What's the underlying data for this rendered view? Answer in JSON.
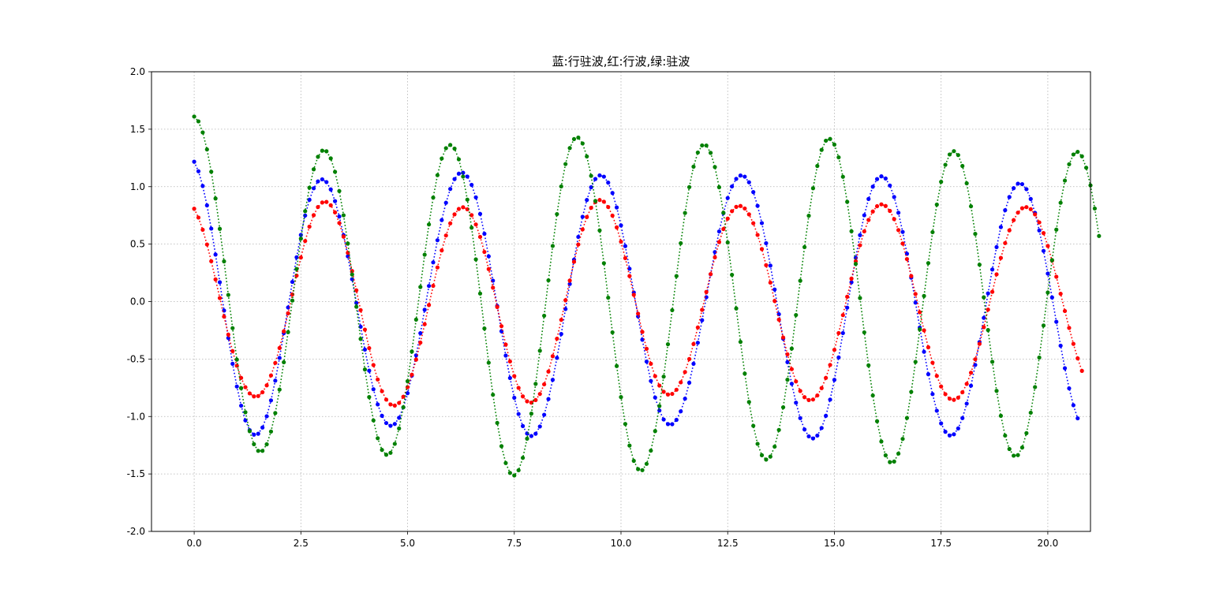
{
  "chart_data": {
    "type": "line",
    "title": "蓝:行驻波,红:行波,绿:驻波",
    "xlabel": "",
    "ylabel": "",
    "xlim": [
      -1.0,
      21.0
    ],
    "ylim": [
      -2.0,
      2.0
    ],
    "x_ticks": [
      0.0,
      2.5,
      5.0,
      7.5,
      10.0,
      12.5,
      15.0,
      17.5,
      20.0
    ],
    "x_tick_labels": [
      "0.0",
      "2.5",
      "5.0",
      "7.5",
      "10.0",
      "12.5",
      "15.0",
      "17.5",
      "20.0"
    ],
    "y_ticks": [
      -2.0,
      -1.5,
      -1.0,
      -0.5,
      0.0,
      0.5,
      1.0,
      1.5,
      2.0
    ],
    "y_tick_labels": [
      "-2.0",
      "-1.5",
      "-1.0",
      "-0.5",
      "0.0",
      "0.5",
      "1.0",
      "1.5",
      "2.0"
    ],
    "grid": true,
    "grid_style": "dotted",
    "line_style": "dotted",
    "marker": "circle",
    "x_start": 0.0,
    "x_end": 20.0,
    "x_step": 0.1,
    "series": [
      {
        "color": "#0000ff",
        "y": [
          1.217,
          1.134,
          1.006,
          0.837,
          0.635,
          0.409,
          0.168,
          -0.078,
          -0.317,
          -0.541,
          -0.739,
          -0.906,
          -1.034,
          -1.119,
          -1.158,
          -1.15,
          -1.096,
          -0.998,
          -0.86,
          -0.688,
          -0.49,
          -0.275,
          -0.051,
          0.171,
          0.385,
          0.58,
          0.749,
          0.886,
          0.986,
          1.046,
          1.064,
          1.04,
          0.976,
          0.874,
          0.74,
          0.578,
          0.394,
          0.195,
          -0.012,
          -0.219,
          -0.418,
          -0.601,
          -0.763,
          -0.895,
          -0.994,
          -1.057,
          -1.081,
          -1.065,
          -1.011,
          -0.92,
          -0.797,
          -0.644,
          -0.468,
          -0.275,
          -0.071,
          0.136,
          0.341,
          0.534,
          0.709,
          0.86,
          0.98,
          1.066,
          1.113,
          1.121,
          1.088,
          1.016,
          0.907,
          0.763,
          0.59,
          0.394,
          0.182,
          -0.038,
          -0.258,
          -0.47,
          -0.665,
          -0.837,
          -0.978,
          -1.083,
          -1.148,
          -1.17,
          -1.15,
          -1.087,
          -0.985,
          -0.848,
          -0.681,
          -0.49,
          -0.282,
          -0.065,
          0.153,
          0.365,
          0.563,
          0.738,
          0.884,
          0.995,
          1.067,
          1.098,
          1.087,
          1.035,
          0.945,
          0.819,
          0.663,
          0.483,
          0.286,
          0.079,
          -0.129,
          -0.332,
          -0.522,
          -0.691,
          -0.835,
          -0.948,
          -1.026,
          -1.066,
          -1.067,
          -1.029,
          -0.955,
          -0.845,
          -0.706,
          -0.541,
          -0.358,
          -0.162,
          0.038,
          0.238,
          0.431,
          0.61,
          0.769,
          0.901,
          1.002,
          1.068,
          1.097,
          1.087,
          1.038,
          0.953,
          0.833,
          0.683,
          0.508,
          0.313,
          0.105,
          -0.11,
          -0.323,
          -0.527,
          -0.715,
          -0.88,
          -1.014,
          -1.113,
          -1.173,
          -1.191,
          -1.166,
          -1.1,
          -0.994,
          -0.853,
          -0.681,
          -0.486,
          -0.274,
          -0.053,
          0.168,
          0.381,
          0.578,
          0.751,
          0.893,
          1.0,
          1.066,
          1.09,
          1.071,
          1.01,
          0.91,
          0.773,
          0.606,
          0.416,
          0.208,
          -0.009,
          -0.226,
          -0.437,
          -0.632,
          -0.805,
          -0.95,
          -1.06,
          -1.133,
          -1.165,
          -1.155,
          -1.104,
          -1.014,
          -0.888,
          -0.732,
          -0.551,
          -0.352,
          -0.142,
          0.071,
          0.279,
          0.474,
          0.648,
          0.795,
          0.91,
          0.987,
          1.026,
          1.022,
          0.978,
          0.893,
          0.772,
          0.619,
          0.441,
          0.244,
          0.036,
          -0.176,
          -0.384,
          -0.58,
          -0.755,
          -0.902,
          -1.016
        ]
      },
      {
        "color": "#ff0000",
        "y": [
          0.808,
          0.731,
          0.625,
          0.497,
          0.351,
          0.193,
          0.031,
          -0.131,
          -0.287,
          -0.431,
          -0.558,
          -0.664,
          -0.745,
          -0.799,
          -0.825,
          -0.822,
          -0.789,
          -0.729,
          -0.643,
          -0.534,
          -0.404,
          -0.259,
          -0.102,
          0.062,
          0.226,
          0.383,
          0.527,
          0.652,
          0.752,
          0.823,
          0.862,
          0.867,
          0.838,
          0.776,
          0.684,
          0.565,
          0.424,
          0.266,
          0.098,
          -0.074,
          -0.244,
          -0.405,
          -0.552,
          -0.678,
          -0.78,
          -0.853,
          -0.895,
          -0.905,
          -0.882,
          -0.828,
          -0.745,
          -0.636,
          -0.505,
          -0.357,
          -0.197,
          -0.03,
          0.137,
          0.297,
          0.445,
          0.575,
          0.681,
          0.759,
          0.806,
          0.821,
          0.803,
          0.752,
          0.671,
          0.563,
          0.432,
          0.283,
          0.121,
          -0.047,
          -0.214,
          -0.374,
          -0.521,
          -0.648,
          -0.751,
          -0.825,
          -0.868,
          -0.879,
          -0.857,
          -0.804,
          -0.72,
          -0.609,
          -0.475,
          -0.323,
          -0.159,
          0.012,
          0.183,
          0.346,
          0.497,
          0.628,
          0.736,
          0.816,
          0.866,
          0.884,
          0.869,
          0.823,
          0.748,
          0.646,
          0.521,
          0.378,
          0.222,
          0.059,
          -0.105,
          -0.264,
          -0.411,
          -0.541,
          -0.649,
          -0.731,
          -0.785,
          -0.809,
          -0.803,
          -0.767,
          -0.703,
          -0.613,
          -0.5,
          -0.369,
          -0.225,
          -0.072,
          0.084,
          0.239,
          0.385,
          0.518,
          0.631,
          0.722,
          0.787,
          0.824,
          0.832,
          0.81,
          0.759,
          0.682,
          0.58,
          0.457,
          0.317,
          0.165,
          0.005,
          -0.157,
          -0.313,
          -0.459,
          -0.588,
          -0.695,
          -0.778,
          -0.832,
          -0.857,
          -0.852,
          -0.817,
          -0.753,
          -0.664,
          -0.551,
          -0.42,
          -0.274,
          -0.118,
          0.042,
          0.2,
          0.351,
          0.49,
          0.611,
          0.71,
          0.784,
          0.83,
          0.846,
          0.832,
          0.789,
          0.718,
          0.622,
          0.505,
          0.37,
          0.222,
          0.066,
          -0.093,
          -0.25,
          -0.398,
          -0.532,
          -0.647,
          -0.739,
          -0.806,
          -0.845,
          -0.855,
          -0.836,
          -0.789,
          -0.716,
          -0.619,
          -0.502,
          -0.368,
          -0.223,
          -0.07,
          0.085,
          0.237,
          0.38,
          0.509,
          0.62,
          0.709,
          0.774,
          0.812,
          0.822,
          0.804,
          0.759,
          0.689,
          0.596,
          0.484,
          0.356,
          0.216,
          0.068,
          -0.082,
          -0.229,
          -0.368,
          -0.494,
          -0.603
        ]
      },
      {
        "color": "#008000",
        "y": [
          1.61,
          1.568,
          1.472,
          1.324,
          1.13,
          0.897,
          0.633,
          0.35,
          0.058,
          -0.231,
          -0.505,
          -0.753,
          -0.963,
          -1.128,
          -1.241,
          -1.299,
          -1.299,
          -1.242,
          -1.131,
          -0.97,
          -0.766,
          -0.528,
          -0.266,
          0.009,
          0.284,
          0.548,
          0.787,
          0.991,
          1.151,
          1.26,
          1.313,
          1.308,
          1.246,
          1.129,
          0.962,
          0.751,
          0.505,
          0.236,
          -0.045,
          -0.325,
          -0.591,
          -0.831,
          -1.034,
          -1.189,
          -1.291,
          -1.333,
          -1.316,
          -1.238,
          -1.104,
          -0.92,
          -0.693,
          -0.435,
          -0.157,
          0.127,
          0.408,
          0.671,
          0.905,
          1.1,
          1.245,
          1.335,
          1.363,
          1.331,
          1.238,
          1.088,
          0.887,
          0.643,
          0.367,
          0.07,
          -0.234,
          -0.532,
          -0.811,
          -1.056,
          -1.258,
          -1.405,
          -1.491,
          -1.513,
          -1.468,
          -1.36,
          -1.193,
          -0.975,
          -0.716,
          -0.428,
          -0.123,
          0.185,
          0.484,
          0.761,
          1.002,
          1.197,
          1.336,
          1.414,
          1.427,
          1.376,
          1.263,
          1.094,
          0.876,
          0.619,
          0.334,
          0.034,
          -0.268,
          -0.561,
          -0.831,
          -1.065,
          -1.253,
          -1.386,
          -1.458,
          -1.467,
          -1.412,
          -1.297,
          -1.127,
          -0.909,
          -0.653,
          -0.371,
          -0.075,
          0.222,
          0.508,
          0.771,
          0.996,
          1.174,
          1.297,
          1.359,
          1.358,
          1.294,
          1.171,
          0.995,
          0.773,
          0.515,
          0.233,
          -0.06,
          -0.351,
          -0.627,
          -0.874,
          -1.081,
          -1.238,
          -1.337,
          -1.375,
          -1.349,
          -1.262,
          -1.117,
          -0.92,
          -0.68,
          -0.409,
          -0.117,
          0.181,
          0.474,
          0.747,
          0.986,
          1.18,
          1.32,
          1.4,
          1.415,
          1.366,
          1.255,
          1.086,
          0.868,
          0.612,
          0.328,
          0.031,
          -0.268,
          -0.555,
          -0.817,
          -1.041,
          -1.218,
          -1.338,
          -1.397,
          -1.392,
          -1.323,
          -1.195,
          -1.013,
          -0.786,
          -0.525,
          -0.242,
          0.049,
          0.335,
          0.604,
          0.844,
          1.042,
          1.19,
          1.28,
          1.309,
          1.275,
          1.18,
          1.029,
          0.829,
          0.589,
          0.321,
          0.037,
          -0.248,
          -0.524,
          -0.777,
          -0.994,
          -1.166,
          -1.283,
          -1.341,
          -1.336,
          -1.27,
          -1.145,
          -0.967,
          -0.744,
          -0.487,
          -0.208,
          0.079,
          0.361,
          0.626,
          0.86,
          1.053,
          1.195,
          1.28,
          1.303,
          1.264,
          1.165,
          1.011,
          0.81,
          0.571
        ]
      }
    ]
  }
}
